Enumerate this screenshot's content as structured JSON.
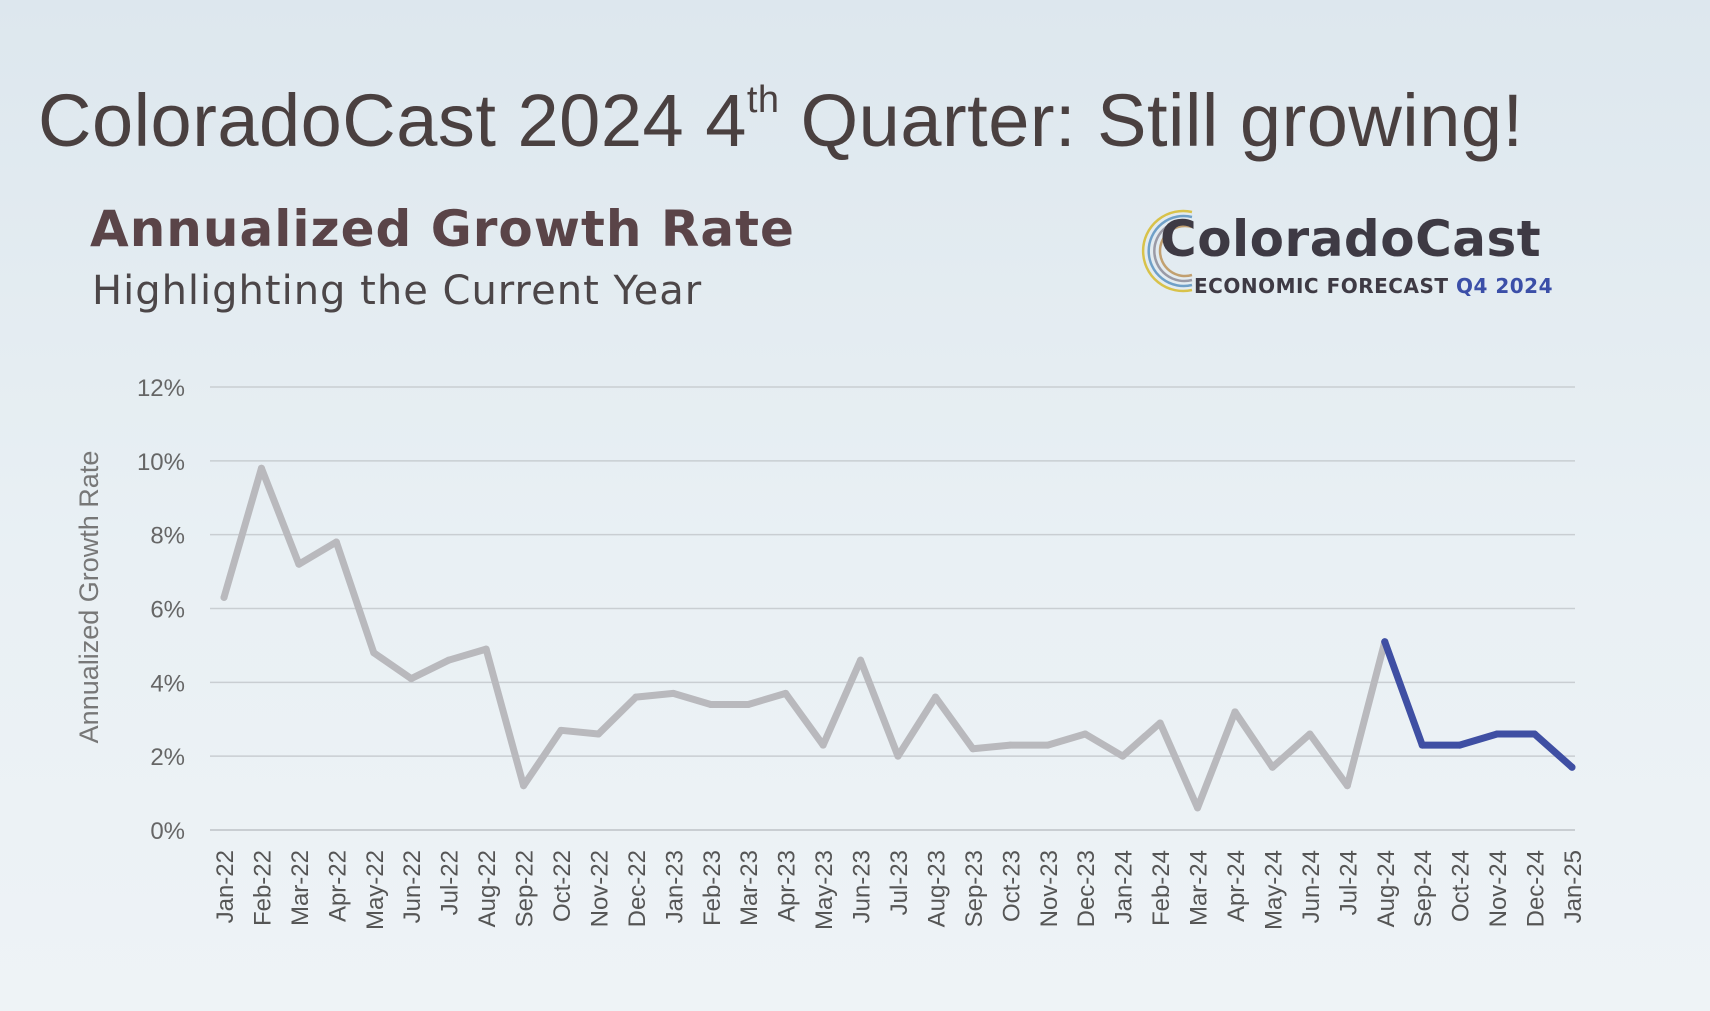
{
  "slide": {
    "title_main": "ColoradoCast 2024 4",
    "title_sup": "th",
    "title_end": " Quarter: Still growing!"
  },
  "logo": {
    "name": "ColoradoCast",
    "tagline_prefix": "ECONOMIC FORECAST ",
    "tagline_highlight": "Q4 2024",
    "mark_icon": "concentric-arcs-icon"
  },
  "colors": {
    "past_line": "#b9b9bd",
    "current_year_line": "#3f4fa3",
    "gridline": "#c9ced2",
    "tick_text": "#666"
  },
  "chart_data": {
    "type": "line",
    "title": "Annualized Growth Rate",
    "subtitle": "Highlighting the Current Year",
    "xlabel": "",
    "ylabel": "Annualized Growth Rate",
    "ylim": [
      0,
      12
    ],
    "yticks": [
      "0%",
      "2%",
      "4%",
      "6%",
      "8%",
      "10%",
      "12%"
    ],
    "grid": true,
    "categories": [
      "Jan-22",
      "Feb-22",
      "Mar-22",
      "Apr-22",
      "May-22",
      "Jun-22",
      "Jul-22",
      "Aug-22",
      "Sep-22",
      "Oct-22",
      "Nov-22",
      "Dec-22",
      "Jan-23",
      "Feb-23",
      "Mar-23",
      "Apr-23",
      "May-23",
      "Jun-23",
      "Jul-23",
      "Aug-23",
      "Sep-23",
      "Oct-23",
      "Nov-23",
      "Dec-23",
      "Jan-24",
      "Feb-24",
      "Mar-24",
      "Apr-24",
      "May-24",
      "Jun-24",
      "Jul-24",
      "Aug-24",
      "Sep-24",
      "Oct-24",
      "Nov-24",
      "Dec-24",
      "Jan-25"
    ],
    "values": [
      6.3,
      9.8,
      7.2,
      7.8,
      4.8,
      4.1,
      4.6,
      4.9,
      1.2,
      2.7,
      2.6,
      3.6,
      3.7,
      3.4,
      3.4,
      3.7,
      2.3,
      4.6,
      2.0,
      3.6,
      2.2,
      2.3,
      2.3,
      2.6,
      2.0,
      2.9,
      0.6,
      3.2,
      1.7,
      2.6,
      1.2,
      5.1,
      2.3,
      2.3,
      2.6,
      2.6,
      1.7
    ],
    "highlight_from_index": 31
  }
}
